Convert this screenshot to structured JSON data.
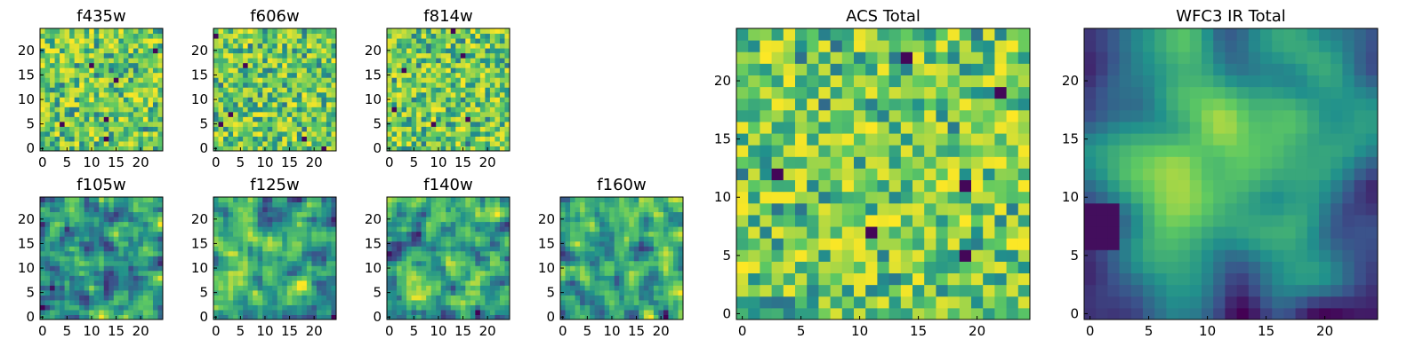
{
  "chart_data": [
    {
      "id": "f435w",
      "type": "heatmap",
      "title": "f435w",
      "grid_size": 25,
      "xlim": [
        -0.5,
        24.5
      ],
      "ylim": [
        -0.5,
        24.5
      ],
      "x_ticks": [
        0,
        5,
        10,
        15,
        20
      ],
      "y_ticks": [
        0,
        5,
        10,
        15,
        20
      ],
      "seed": 11,
      "style": "noise",
      "xlabel": "",
      "ylabel": ""
    },
    {
      "id": "f606w",
      "type": "heatmap",
      "title": "f606w",
      "grid_size": 25,
      "xlim": [
        -0.5,
        24.5
      ],
      "ylim": [
        -0.5,
        24.5
      ],
      "x_ticks": [
        0,
        5,
        10,
        15,
        20
      ],
      "y_ticks": [
        0,
        5,
        10,
        15,
        20
      ],
      "seed": 23,
      "style": "noise",
      "xlabel": "",
      "ylabel": ""
    },
    {
      "id": "f814w",
      "type": "heatmap",
      "title": "f814w",
      "grid_size": 25,
      "xlim": [
        -0.5,
        24.5
      ],
      "ylim": [
        -0.5,
        24.5
      ],
      "x_ticks": [
        0,
        5,
        10,
        15,
        20
      ],
      "y_ticks": [
        0,
        5,
        10,
        15,
        20
      ],
      "seed": 37,
      "style": "noise",
      "xlabel": "",
      "ylabel": ""
    },
    {
      "id": "f105w",
      "type": "heatmap",
      "title": "f105w",
      "grid_size": 25,
      "xlim": [
        -0.5,
        24.5
      ],
      "ylim": [
        -0.5,
        24.5
      ],
      "x_ticks": [
        0,
        5,
        10,
        15,
        20
      ],
      "y_ticks": [
        0,
        5,
        10,
        15,
        20
      ],
      "seed": 41,
      "style": "smooth",
      "xlabel": "",
      "ylabel": ""
    },
    {
      "id": "f125w",
      "type": "heatmap",
      "title": "f125w",
      "grid_size": 25,
      "xlim": [
        -0.5,
        24.5
      ],
      "ylim": [
        -0.5,
        24.5
      ],
      "x_ticks": [
        0,
        5,
        10,
        15,
        20
      ],
      "y_ticks": [
        0,
        5,
        10,
        15,
        20
      ],
      "seed": 53,
      "style": "smooth",
      "xlabel": "",
      "ylabel": ""
    },
    {
      "id": "f140w",
      "type": "heatmap",
      "title": "f140w",
      "grid_size": 25,
      "xlim": [
        -0.5,
        24.5
      ],
      "ylim": [
        -0.5,
        24.5
      ],
      "x_ticks": [
        0,
        5,
        10,
        15,
        20
      ],
      "y_ticks": [
        0,
        5,
        10,
        15,
        20
      ],
      "seed": 67,
      "style": "smooth",
      "xlabel": "",
      "ylabel": ""
    },
    {
      "id": "f160w",
      "type": "heatmap",
      "title": "f160w",
      "grid_size": 25,
      "xlim": [
        -0.5,
        24.5
      ],
      "ylim": [
        -0.5,
        24.5
      ],
      "x_ticks": [
        0,
        5,
        10,
        15,
        20
      ],
      "y_ticks": [
        0,
        5,
        10,
        15,
        20
      ],
      "seed": 79,
      "style": "smooth",
      "xlabel": "",
      "ylabel": ""
    },
    {
      "id": "acs-total",
      "type": "heatmap",
      "title": "ACS Total",
      "grid_size": 25,
      "xlim": [
        -0.5,
        24.5
      ],
      "ylim": [
        -0.5,
        24.5
      ],
      "x_ticks": [
        0,
        5,
        10,
        15,
        20
      ],
      "y_ticks": [
        0,
        5,
        10,
        15,
        20
      ],
      "seed": 97,
      "style": "noise",
      "xlabel": "",
      "ylabel": ""
    },
    {
      "id": "wfc3-ir-total",
      "type": "heatmap",
      "title": "WFC3 IR Total",
      "grid_size": 25,
      "xlim": [
        -0.5,
        24.5
      ],
      "ylim": [
        -0.5,
        24.5
      ],
      "x_ticks": [
        0,
        5,
        10,
        15,
        20
      ],
      "y_ticks": [
        0,
        5,
        10,
        15,
        20
      ],
      "seed": 101,
      "style": "blob",
      "xlabel": "",
      "ylabel": ""
    }
  ],
  "colormap": [
    "#440154",
    "#3b528b",
    "#21918c",
    "#5ec962",
    "#fde725"
  ]
}
